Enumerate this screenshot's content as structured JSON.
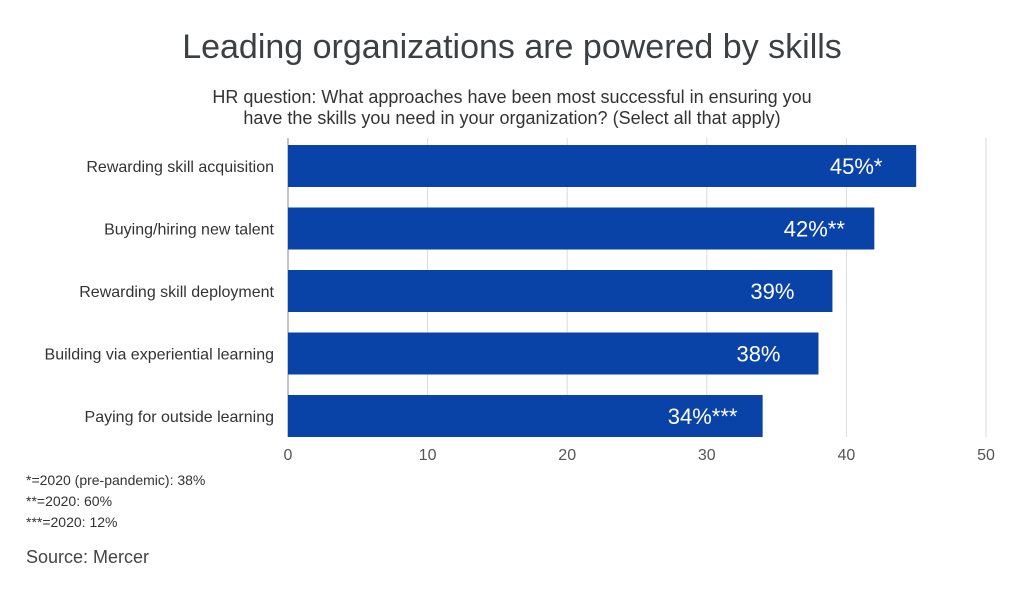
{
  "chart_data": {
    "type": "bar",
    "orientation": "horizontal",
    "title": "Leading organizations are powered by skills",
    "subtitle_lines": [
      "HR question: What approaches have been most successful in ensuring you",
      "have the skills you need in your organization? (Select all that apply)"
    ],
    "categories": [
      "Rewarding skill acquisition",
      "Buying/hiring new talent",
      "Rewarding skill deployment",
      "Building via experiential learning",
      "Paying for outside learning"
    ],
    "values": [
      45,
      42,
      39,
      38,
      34
    ],
    "data_labels": [
      "45%*",
      "42%**",
      "39%",
      "38%",
      "34%***"
    ],
    "xlim": [
      0,
      50
    ],
    "x_ticks": [
      0,
      10,
      20,
      30,
      40,
      50
    ],
    "grid": true,
    "bar_color": "#0a43a8"
  },
  "footnotes": [
    "*=2020 (pre-pandemic): 38%",
    "**=2020: 60%",
    "***=2020: 12%"
  ],
  "source": "Source: Mercer"
}
